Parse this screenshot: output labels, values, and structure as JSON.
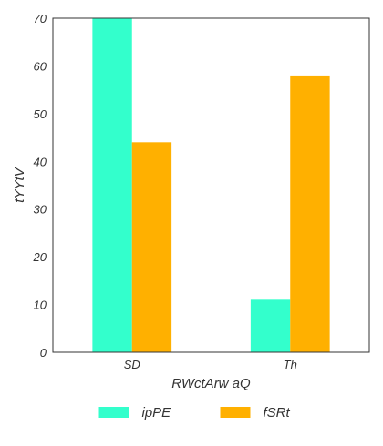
{
  "chart_data": {
    "type": "bar",
    "title": "",
    "xlabel": "RWctArw aQ",
    "ylabel": "tYYtV",
    "categories": [
      "SD",
      "Th"
    ],
    "series": [
      {
        "name": "ipPE",
        "values": [
          70,
          11
        ],
        "color": "#33ffcc"
      },
      {
        "name": "fSRt",
        "values": [
          44,
          58
        ],
        "color": "#ffb000"
      }
    ],
    "ylim": [
      0,
      70
    ],
    "yticks": [
      0,
      10,
      20,
      30,
      40,
      50,
      60,
      70
    ],
    "grid": false,
    "legend_position": "bottom-center"
  }
}
